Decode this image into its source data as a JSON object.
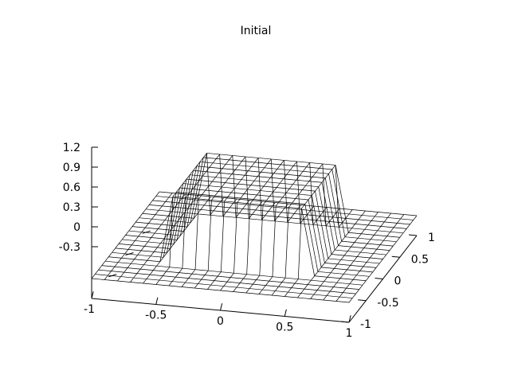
{
  "chart_data": {
    "type": "surface-wireframe",
    "title": "Initial",
    "xlabel": "",
    "ylabel": "",
    "zlabel": "",
    "xlim": [
      -1,
      1
    ],
    "ylim": [
      -1,
      1
    ],
    "zlim": [
      -0.3,
      1.2
    ],
    "x_ticks": [
      "-1",
      "-0.5",
      "0",
      "0.5",
      "1"
    ],
    "y_ticks": [
      "-1",
      "-0.5",
      "0",
      "0.5",
      "1"
    ],
    "z_ticks": [
      "-0.3",
      "0",
      "0.3",
      "0.6",
      "0.9",
      "1.2"
    ],
    "grid_n": 20,
    "plateau": {
      "x_range": [
        -0.5,
        0.5
      ],
      "y_range": [
        -0.5,
        0.5
      ],
      "height": 1.0,
      "base_height": 0.0
    }
  }
}
